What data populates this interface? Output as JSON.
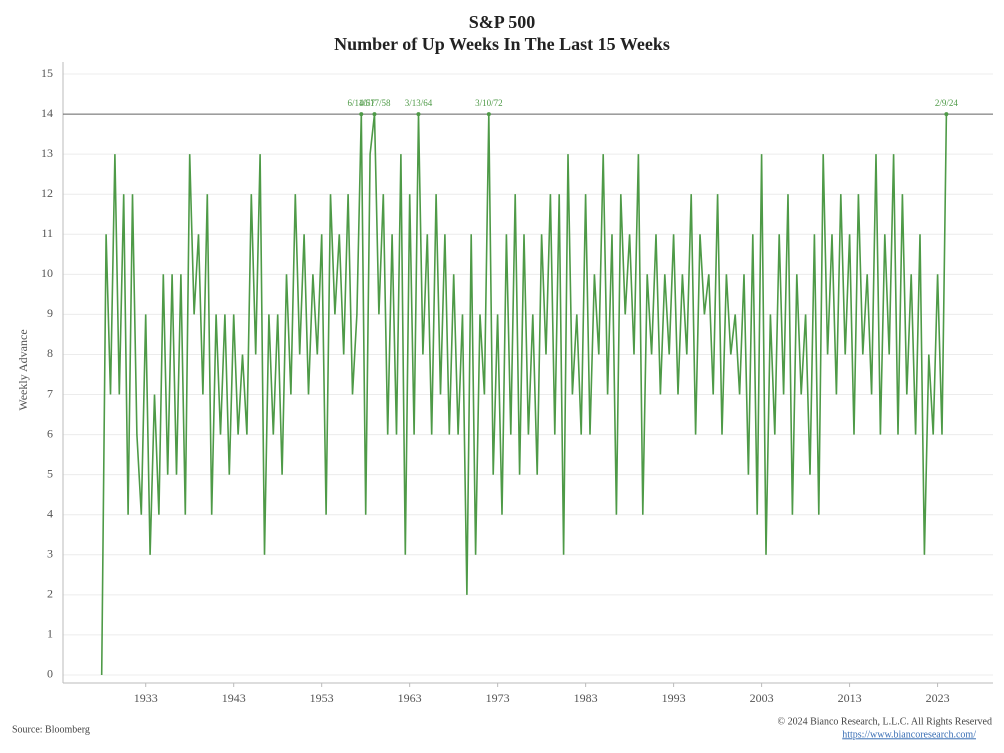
{
  "chart_data": {
    "type": "line",
    "title": "S&P 500",
    "subtitle": "Number of Up Weeks In The Last 15 Weeks",
    "y_label": "Weekly Advance",
    "source": "Source: Bloomberg",
    "copyright": "© 2024 Bianco Research, L.L.C. All Rights Reserved",
    "url": "https://www.biancoresearch.com/",
    "color": "#4e9a47",
    "grid": true,
    "hline": 14,
    "xlim": [
      1923.6,
      2029.3
    ],
    "xticks": [
      1933,
      1943,
      1953,
      1963,
      1973,
      1983,
      1993,
      2003,
      2013,
      2023
    ],
    "ylim": [
      -0.2,
      15.3
    ],
    "yticks": [
      0,
      1,
      2,
      3,
      4,
      5,
      6,
      7,
      8,
      9,
      10,
      11,
      12,
      13,
      14,
      15
    ],
    "x": [
      1928,
      1928.5,
      1929,
      1929.5,
      1930,
      1930.5,
      1931,
      1931.5,
      1932,
      1932.5,
      1933,
      1933.5,
      1934,
      1934.5,
      1935,
      1935.5,
      1936,
      1936.5,
      1937,
      1937.5,
      1938,
      1938.5,
      1939,
      1939.5,
      1940,
      1940.5,
      1941,
      1941.5,
      1942,
      1942.5,
      1943,
      1943.5,
      1944,
      1944.5,
      1945,
      1945.5,
      1946,
      1946.5,
      1947,
      1947.5,
      1948,
      1948.5,
      1949,
      1949.5,
      1950,
      1950.5,
      1951,
      1951.5,
      1952,
      1952.5,
      1953,
      1953.5,
      1954,
      1954.5,
      1955,
      1955.5,
      1956,
      1956.5,
      1957,
      1957.5,
      1958,
      1958.5,
      1959,
      1959.5,
      1960,
      1960.5,
      1961,
      1961.5,
      1962,
      1962.5,
      1963,
      1963.5,
      1964,
      1964.5,
      1965,
      1965.5,
      1966,
      1966.5,
      1967,
      1967.5,
      1968,
      1968.5,
      1969,
      1969.5,
      1970,
      1970.5,
      1971,
      1971.5,
      1972,
      1972.5,
      1973,
      1973.5,
      1974,
      1974.5,
      1975,
      1975.5,
      1976,
      1976.5,
      1977,
      1977.5,
      1978,
      1978.5,
      1979,
      1979.5,
      1980,
      1980.5,
      1981,
      1981.5,
      1982,
      1982.5,
      1983,
      1983.5,
      1984,
      1984.5,
      1985,
      1985.5,
      1986,
      1986.5,
      1987,
      1987.5,
      1988,
      1988.5,
      1989,
      1989.5,
      1990,
      1990.5,
      1991,
      1991.5,
      1992,
      1992.5,
      1993,
      1993.5,
      1994,
      1994.5,
      1995,
      1995.5,
      1996,
      1996.5,
      1997,
      1997.5,
      1998,
      1998.5,
      1999,
      1999.5,
      2000,
      2000.5,
      2001,
      2001.5,
      2002,
      2002.5,
      2003,
      2003.5,
      2004,
      2004.5,
      2005,
      2005.5,
      2006,
      2006.5,
      2007,
      2007.5,
      2008,
      2008.5,
      2009,
      2009.5,
      2010,
      2010.5,
      2011,
      2011.5,
      2012,
      2012.5,
      2013,
      2013.5,
      2014,
      2014.5,
      2015,
      2015.5,
      2016,
      2016.5,
      2017,
      2017.5,
      2018,
      2018.5,
      2019,
      2019.5,
      2020,
      2020.5,
      2021,
      2021.5,
      2022,
      2022.5,
      2023,
      2023.5,
      2024
    ],
    "values": [
      0,
      11,
      7,
      13,
      7,
      12,
      4,
      12,
      6,
      4,
      9,
      3,
      7,
      4,
      10,
      5,
      10,
      5,
      10,
      4,
      13,
      9,
      11,
      7,
      12,
      4,
      9,
      6,
      9,
      5,
      9,
      6,
      8,
      6,
      12,
      8,
      13,
      3,
      9,
      6,
      9,
      5,
      10,
      7,
      12,
      8,
      11,
      7,
      10,
      8,
      11,
      4,
      12,
      9,
      11,
      8,
      12,
      7,
      9,
      14,
      4,
      13,
      14,
      9,
      12,
      6,
      11,
      6,
      13,
      3,
      12,
      6,
      14,
      8,
      11,
      6,
      12,
      7,
      11,
      6,
      10,
      6,
      9,
      2,
      11,
      3,
      9,
      7,
      14,
      5,
      9,
      4,
      11,
      6,
      12,
      5,
      11,
      6,
      9,
      5,
      11,
      8,
      12,
      6,
      12,
      3,
      13,
      7,
      9,
      6,
      12,
      6,
      10,
      8,
      13,
      7,
      11,
      4,
      12,
      9,
      11,
      8,
      13,
      4,
      10,
      8,
      11,
      7,
      10,
      8,
      11,
      7,
      10,
      8,
      12,
      6,
      11,
      9,
      10,
      7,
      12,
      6,
      10,
      8,
      9,
      7,
      10,
      5,
      11,
      4,
      13,
      3,
      9,
      6,
      11,
      7,
      12,
      4,
      10,
      7,
      9,
      5,
      11,
      4,
      13,
      8,
      11,
      7,
      12,
      8,
      11,
      6,
      12,
      8,
      10,
      7,
      13,
      6,
      11,
      8,
      13,
      6,
      12,
      7,
      10,
      6,
      11,
      3,
      8,
      6,
      10,
      6,
      14
    ],
    "annotations": [
      {
        "x": 1957.5,
        "y": 14,
        "label": "6/14/57"
      },
      {
        "x": 1959,
        "y": 14,
        "label": "10/17/58"
      },
      {
        "x": 1964,
        "y": 14,
        "label": "3/13/64"
      },
      {
        "x": 1972,
        "y": 14,
        "label": "3/10/72"
      },
      {
        "x": 2024,
        "y": 14,
        "label": "2/9/24"
      }
    ]
  }
}
